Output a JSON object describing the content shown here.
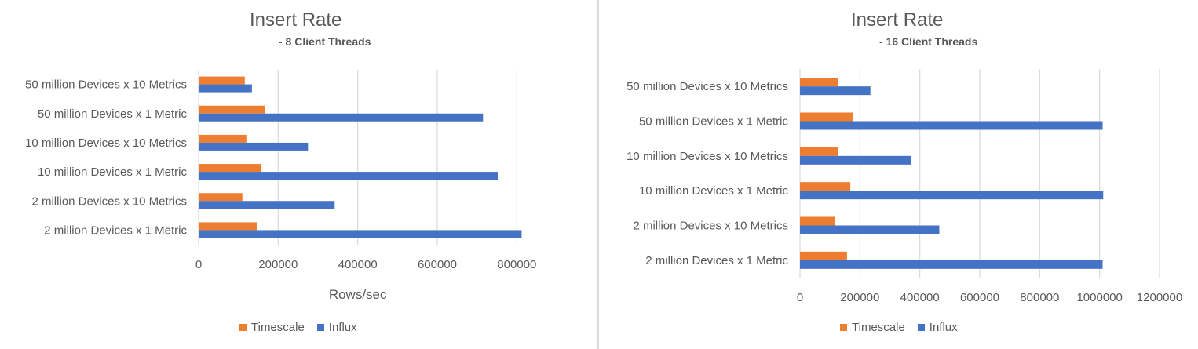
{
  "colors": {
    "timescale": "#ED7D31",
    "influx": "#4472C4",
    "grid": "#d9d9d9",
    "text": "#595959"
  },
  "chart_data": [
    {
      "type": "bar",
      "orientation": "horizontal",
      "title": "Insert Rate",
      "subtitle": "- 8 Client Threads",
      "xlabel": "Rows/sec",
      "ylabel": "",
      "xlim": [
        0,
        900000
      ],
      "xticks": [
        "0",
        "200000",
        "400000",
        "600000",
        "800000"
      ],
      "xtick_values": [
        0,
        200000,
        400000,
        600000,
        800000
      ],
      "grid": true,
      "legend": "bottom",
      "categories": [
        "50 million Devices x 10 Metrics",
        "50 million Devices x 1 Metric",
        "10 million Devices x 10 Metrics",
        "10 million Devices x 1 Metric",
        "2 million Devices x 10 Metrics",
        "2 million Devices x 1 Metric"
      ],
      "series": [
        {
          "name": "Timescale",
          "values": [
            116000,
            166000,
            120000,
            158000,
            110000,
            147000
          ]
        },
        {
          "name": "Influx",
          "values": [
            134000,
            715000,
            275000,
            752000,
            342000,
            812000
          ]
        }
      ]
    },
    {
      "type": "bar",
      "orientation": "horizontal",
      "title": "Insert Rate",
      "subtitle": "- 16 Client Threads",
      "xlabel": "",
      "ylabel": "",
      "xlim": [
        0,
        1200000
      ],
      "xticks": [
        "0",
        "200000",
        "400000",
        "600000",
        "800000",
        "1000000",
        "1200000"
      ],
      "xtick_values": [
        0,
        200000,
        400000,
        600000,
        800000,
        1000000,
        1200000
      ],
      "grid": true,
      "legend": "bottom",
      "categories": [
        "50 million Devices x 10 Metrics",
        "50 million Devices x 1 Metric",
        "10 million Devices x 10 Metrics",
        "10 million Devices x 1 Metric",
        "2 million Devices x 10 Metrics",
        "2 million Devices x 1 Metric"
      ],
      "series": [
        {
          "name": "Timescale",
          "values": [
            126000,
            176000,
            128000,
            168000,
            117000,
            157000
          ]
        },
        {
          "name": "Influx",
          "values": [
            235000,
            1010000,
            370000,
            1012000,
            465000,
            1010000
          ]
        }
      ]
    }
  ]
}
